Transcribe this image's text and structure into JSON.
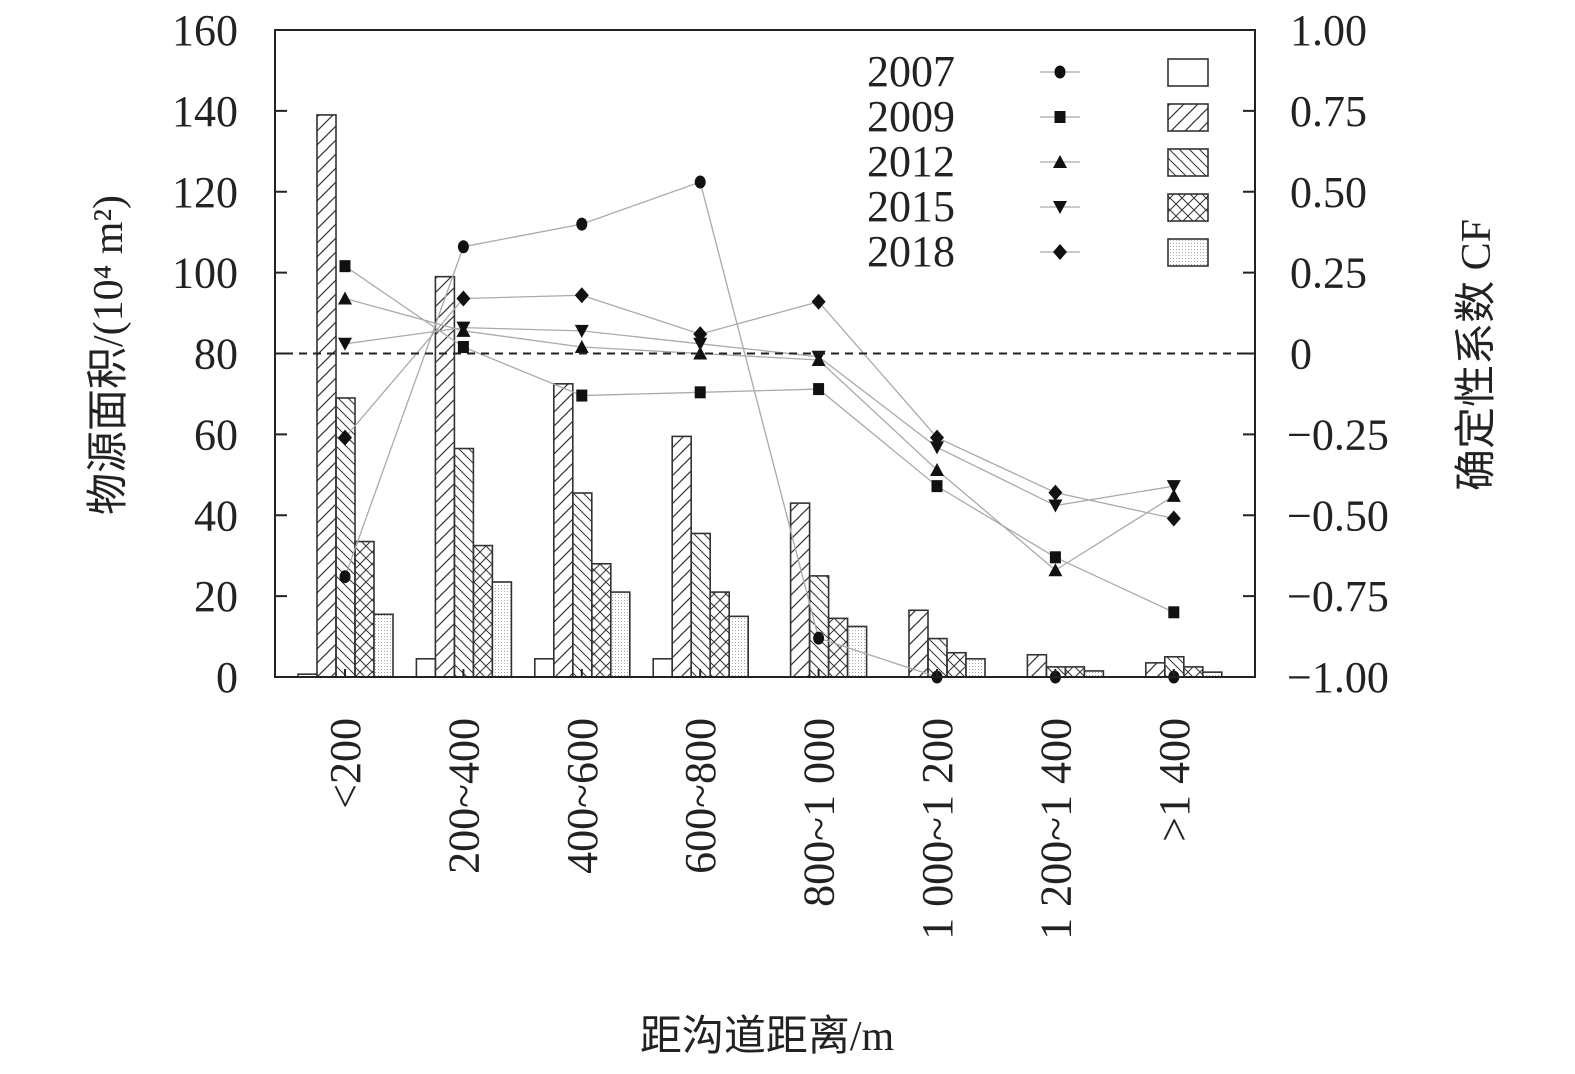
{
  "chart_data": {
    "type": "bar+line",
    "xlabel": "距沟道距离/m",
    "ylabel": "物源面积/(10⁴ m²)",
    "ylabel_right": "确定性系数 CF",
    "categories": [
      "<200",
      "200~400",
      "400~600",
      "600~800",
      "800~1 000",
      "1 000~1 200",
      "1 200~1 400",
      ">1 400"
    ],
    "ylim": [
      0,
      160
    ],
    "yticks": [
      "0",
      "20",
      "40",
      "60",
      "80",
      "100",
      "120",
      "140",
      "160"
    ],
    "ylim_right": [
      -1,
      1
    ],
    "yticks_right": [
      "−1.00",
      "−0.75",
      "−0.50",
      "−0.25",
      "0",
      "0.25",
      "0.50",
      "0.75",
      "1.00"
    ],
    "reference_line_cf": 0,
    "legend_position": "top-right",
    "series": [
      {
        "name": "2007",
        "marker": "circle",
        "pattern": "blank",
        "area": [
          0.7,
          4.5,
          4.5,
          4.5,
          0,
          0,
          0,
          0
        ],
        "cf": [
          -0.69,
          0.33,
          0.4,
          0.53,
          -0.88,
          -1.0,
          -1.0,
          -1.0
        ]
      },
      {
        "name": "2009",
        "marker": "square",
        "pattern": "diagonal",
        "area": [
          139,
          99,
          72.5,
          59.5,
          43,
          16.5,
          5.5,
          3.5
        ],
        "cf": [
          0.27,
          0.02,
          -0.13,
          -0.12,
          -0.11,
          -0.41,
          -0.63,
          -0.8
        ]
      },
      {
        "name": "2012",
        "marker": "triangle-up",
        "pattern": "back-diagonal",
        "area": [
          69,
          56.5,
          45.5,
          35.5,
          25,
          9.5,
          2.5,
          5
        ],
        "cf": [
          0.17,
          0.07,
          0.02,
          0.0,
          -0.02,
          -0.36,
          -0.67,
          -0.44
        ]
      },
      {
        "name": "2015",
        "marker": "triangle-down",
        "pattern": "crosshatch",
        "area": [
          33.5,
          32.5,
          28,
          21,
          14.5,
          6,
          2.5,
          2.5
        ],
        "cf": [
          0.03,
          0.08,
          0.07,
          0.03,
          -0.01,
          -0.29,
          -0.47,
          -0.41
        ]
      },
      {
        "name": "2018",
        "marker": "diamond",
        "pattern": "dots",
        "area": [
          15.5,
          23.5,
          21,
          15,
          12.5,
          4.5,
          1.5,
          1.2
        ],
        "cf": [
          -0.26,
          0.17,
          0.18,
          0.06,
          0.16,
          -0.26,
          -0.43,
          -0.51
        ]
      }
    ]
  }
}
